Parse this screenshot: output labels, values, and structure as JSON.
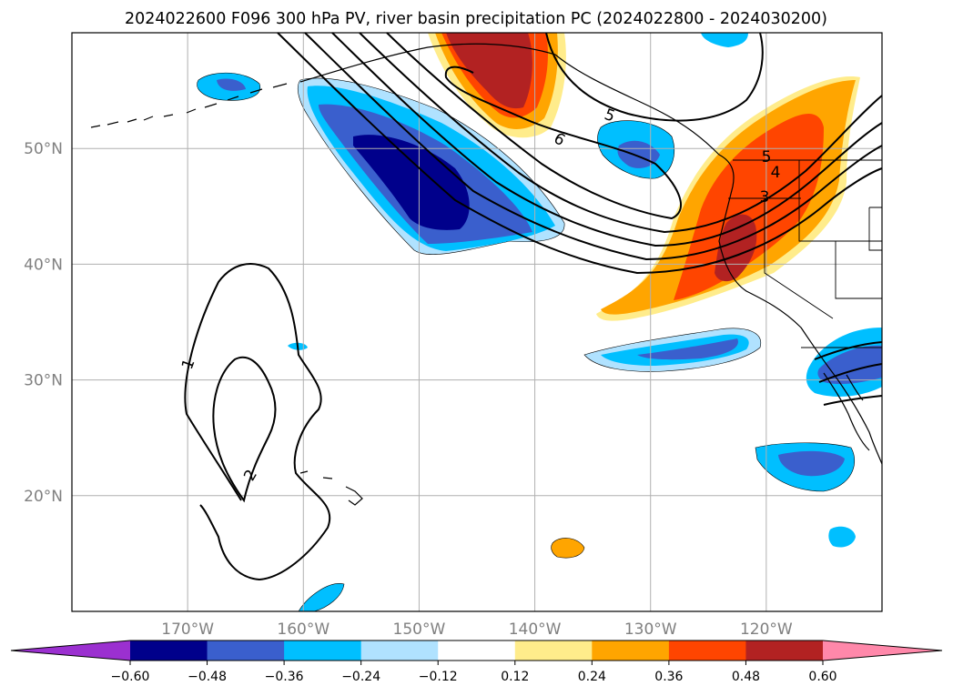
{
  "title": "2024022600 F096 300 hPa PV, river basin precipitation PC (2024022800 - 2024030200)",
  "map": {
    "lon_range": [
      -180,
      -110
    ],
    "lat_range": [
      10,
      60
    ],
    "lon_ticks": [
      {
        "lon": -170,
        "label": "170°W"
      },
      {
        "lon": -160,
        "label": "160°W"
      },
      {
        "lon": -150,
        "label": "150°W"
      },
      {
        "lon": -140,
        "label": "140°W"
      },
      {
        "lon": -130,
        "label": "130°W"
      },
      {
        "lon": -120,
        "label": "120°W"
      }
    ],
    "lat_ticks": [
      {
        "lat": 50,
        "label": "50°N"
      },
      {
        "lat": 40,
        "label": "40°N"
      },
      {
        "lat": 30,
        "label": "30°N"
      },
      {
        "lat": 20,
        "label": "20°N"
      }
    ],
    "grid": true
  },
  "colorbar": {
    "ticks": [
      "−0.60",
      "−0.48",
      "−0.36",
      "−0.24",
      "−0.12",
      "0.12",
      "0.24",
      "0.36",
      "0.48",
      "0.60"
    ],
    "colors": [
      "#9b30d0",
      "#00008b",
      "#3a5fcd",
      "#00bfff",
      "#b0e2ff",
      "#ffffff",
      "#ffec8b",
      "#ffa500",
      "#ff4500",
      "#b22222",
      "#ff88aa"
    ]
  },
  "contour_labels": [
    "1",
    "2",
    "3",
    "4",
    "5",
    "5",
    "6"
  ]
}
